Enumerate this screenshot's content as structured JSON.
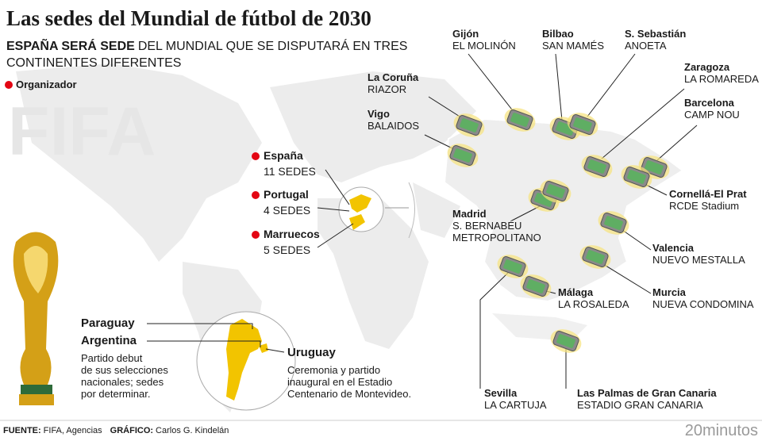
{
  "header": {
    "title": "Las sedes del Mundial de fútbol de 2030",
    "subtitle": {
      "bold": "ESPAÑA SERÁ SEDE",
      "lines": [
        "DEL MUNDIAL QUE SE DISPUTARÁ EN TRES",
        "CONTINENTES DIFERENTES"
      ]
    }
  },
  "legend": "Organizador",
  "watermark": "FIFA",
  "hosts": [
    {
      "country": "España",
      "venues": "11 SEDES"
    },
    {
      "country": "Portugal",
      "venues": "4 SEDES"
    },
    {
      "country": "Marruecos",
      "venues": "5 SEDES"
    }
  ],
  "south_america": [
    {
      "countries": [
        "Paraguay",
        "Argentina"
      ],
      "note": [
        "Partido debut",
        "de sus selecciones",
        "nacionales; sedes",
        "por determinar."
      ]
    },
    {
      "countries": [
        "Uruguay"
      ],
      "note": [
        "Ceremonia y partido",
        "inaugural en el Estadio",
        "Centenario de Montevideo."
      ]
    }
  ],
  "stadiums": [
    {
      "city": "Gijón",
      "names": [
        "EL MOLINÓN"
      ]
    },
    {
      "city": "Bilbao",
      "names": [
        "SAN MAMÉS"
      ]
    },
    {
      "city": "S. Sebastián",
      "names": [
        "ANOETA"
      ]
    },
    {
      "city": "Zaragoza",
      "names": [
        "LA ROMAREDA"
      ]
    },
    {
      "city": "La Coruña",
      "names": [
        "RIAZOR"
      ]
    },
    {
      "city": "Barcelona",
      "names": [
        "CAMP NOU"
      ]
    },
    {
      "city": "Vigo",
      "names": [
        "BALAIDOS"
      ]
    },
    {
      "city": "Cornellá-El Prat",
      "names": [
        "RCDE Stadium"
      ]
    },
    {
      "city": "Madrid",
      "names": [
        "S. BERNABÉU",
        "METROPOLITANO"
      ]
    },
    {
      "city": "Valencia",
      "names": [
        "NUEVO MESTALLA"
      ]
    },
    {
      "city": "Murcia",
      "names": [
        "NUEVA CONDOMINA"
      ]
    },
    {
      "city": "Málaga",
      "names": [
        "LA ROSALEDA"
      ]
    },
    {
      "city": "Sevilla",
      "names": [
        "LA CARTUJA"
      ]
    },
    {
      "city": "Las Palmas de Gran Canaria",
      "names": [
        "ESTADIO GRAN CANARIA"
      ]
    }
  ],
  "footer": {
    "source_label": "FUENTE:",
    "source": "FIFA, Agencias",
    "credit_label": "GRÁFICO:",
    "credit": "Carlos G. Kindelán",
    "logo": "20minutos"
  }
}
